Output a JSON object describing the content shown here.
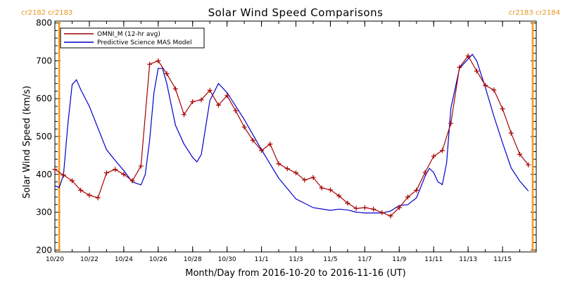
{
  "chart_data": {
    "type": "line",
    "title": "Solar Wind Speed Comparisons",
    "xlabel": "Month/Day from 2016-10-20 to 2016-11-16 (UT)",
    "ylabel": "Solar Wind Speed (km/s)",
    "xlim": [
      "2016-10-20",
      "2016-11-16T23:00"
    ],
    "ylim": [
      195,
      805
    ],
    "y_ticks": [
      200,
      300,
      400,
      500,
      600,
      700,
      800
    ],
    "x_ticks": [
      {
        "date": "2016-10-20",
        "label": "10/20"
      },
      {
        "date": "2016-10-22",
        "label": "10/22"
      },
      {
        "date": "2016-10-24",
        "label": "10/24"
      },
      {
        "date": "2016-10-26",
        "label": "10/26"
      },
      {
        "date": "2016-10-28",
        "label": "10/28"
      },
      {
        "date": "2016-10-30",
        "label": "10/30"
      },
      {
        "date": "2016-11-01",
        "label": "11/1"
      },
      {
        "date": "2016-11-03",
        "label": "11/3"
      },
      {
        "date": "2016-11-05",
        "label": "11/5"
      },
      {
        "date": "2016-11-07",
        "label": "11/7"
      },
      {
        "date": "2016-11-09",
        "label": "11/9"
      },
      {
        "date": "2016-11-11",
        "label": "11/11"
      },
      {
        "date": "2016-11-13",
        "label": "11/13"
      },
      {
        "date": "2016-11-15",
        "label": "11/15"
      }
    ],
    "legend_position": "top-left",
    "carrington_markers": [
      {
        "date": "2016-10-20T06:00",
        "labels": [
          "cr2182",
          "cr2183"
        ],
        "label_side": "left"
      },
      {
        "date": "2016-11-16T18:00",
        "labels": [
          "cr2183",
          "cr2184"
        ],
        "label_side": "right"
      }
    ],
    "marker_color": "#f29a1f",
    "series": [
      {
        "name": "OMNI_M (12-hr avg)",
        "color": "#a50000",
        "marker": "plus",
        "points": [
          [
            "2016-10-20T00:00",
            413
          ],
          [
            "2016-10-20T12:00",
            398
          ],
          [
            "2016-10-21T00:00",
            383
          ],
          [
            "2016-10-21T12:00",
            358
          ],
          [
            "2016-10-22T00:00",
            345
          ],
          [
            "2016-10-22T12:00",
            338
          ],
          [
            "2016-10-23T00:00",
            404
          ],
          [
            "2016-10-23T12:00",
            413
          ],
          [
            "2016-10-24T00:00",
            400
          ],
          [
            "2016-10-24T12:00",
            383
          ],
          [
            "2016-10-25T00:00",
            422
          ],
          [
            "2016-10-25T12:00",
            691
          ],
          [
            "2016-10-26T00:00",
            700
          ],
          [
            "2016-10-26T12:00",
            666
          ],
          [
            "2016-10-27T00:00",
            626
          ],
          [
            "2016-10-27T12:00",
            558
          ],
          [
            "2016-10-28T00:00",
            592
          ],
          [
            "2016-10-28T12:00",
            597
          ],
          [
            "2016-10-29T00:00",
            622
          ],
          [
            "2016-10-29T12:00",
            583
          ],
          [
            "2016-10-30T00:00",
            608
          ],
          [
            "2016-10-30T12:00",
            568
          ],
          [
            "2016-10-31T00:00",
            525
          ],
          [
            "2016-10-31T12:00",
            490
          ],
          [
            "2016-11-01T00:00",
            463
          ],
          [
            "2016-11-01T12:00",
            480
          ],
          [
            "2016-11-02T00:00",
            428
          ],
          [
            "2016-11-02T12:00",
            415
          ],
          [
            "2016-11-03T00:00",
            404
          ],
          [
            "2016-11-03T12:00",
            385
          ],
          [
            "2016-11-04T00:00",
            392
          ],
          [
            "2016-11-04T12:00",
            364
          ],
          [
            "2016-11-05T00:00",
            359
          ],
          [
            "2016-11-05T12:00",
            343
          ],
          [
            "2016-11-06T00:00",
            324
          ],
          [
            "2016-11-06T12:00",
            310
          ],
          [
            "2016-11-07T00:00",
            312
          ],
          [
            "2016-11-07T12:00",
            308
          ],
          [
            "2016-11-08T00:00",
            299
          ],
          [
            "2016-11-08T12:00",
            290
          ],
          [
            "2016-11-09T00:00",
            312
          ],
          [
            "2016-11-09T12:00",
            340
          ],
          [
            "2016-11-10T00:00",
            358
          ],
          [
            "2016-11-10T12:00",
            405
          ],
          [
            "2016-11-11T00:00",
            448
          ],
          [
            "2016-11-11T12:00",
            463
          ],
          [
            "2016-11-12T00:00",
            535
          ],
          [
            "2016-11-12T12:00",
            683
          ],
          [
            "2016-11-13T00:00",
            713
          ],
          [
            "2016-11-13T12:00",
            673
          ],
          [
            "2016-11-14T00:00",
            635
          ],
          [
            "2016-11-14T12:00",
            623
          ],
          [
            "2016-11-15T00:00",
            573
          ],
          [
            "2016-11-15T12:00",
            509
          ],
          [
            "2016-11-16T00:00",
            453
          ],
          [
            "2016-11-16T12:00",
            425
          ]
        ]
      },
      {
        "name": "Predictive Science MAS Model",
        "color": "#0000c8",
        "marker": "none",
        "points": [
          [
            "2016-10-20T00:00",
            370
          ],
          [
            "2016-10-20T06:00",
            365
          ],
          [
            "2016-10-20T12:00",
            398
          ],
          [
            "2016-10-20T18:00",
            530
          ],
          [
            "2016-10-21T00:00",
            637
          ],
          [
            "2016-10-21T06:00",
            650
          ],
          [
            "2016-10-21T12:00",
            624
          ],
          [
            "2016-10-22T00:00",
            580
          ],
          [
            "2016-10-23T00:00",
            465
          ],
          [
            "2016-10-23T12:00",
            437
          ],
          [
            "2016-10-24T00:00",
            410
          ],
          [
            "2016-10-24T12:00",
            380
          ],
          [
            "2016-10-25T00:00",
            372
          ],
          [
            "2016-10-25T06:00",
            400
          ],
          [
            "2016-10-25T12:00",
            490
          ],
          [
            "2016-10-25T18:00",
            615
          ],
          [
            "2016-10-26T00:00",
            680
          ],
          [
            "2016-10-26T06:00",
            680
          ],
          [
            "2016-10-26T12:00",
            640
          ],
          [
            "2016-10-27T00:00",
            530
          ],
          [
            "2016-10-27T12:00",
            480
          ],
          [
            "2016-10-28T00:00",
            445
          ],
          [
            "2016-10-28T06:00",
            433
          ],
          [
            "2016-10-28T12:00",
            452
          ],
          [
            "2016-10-29T00:00",
            595
          ],
          [
            "2016-10-29T12:00",
            640
          ],
          [
            "2016-10-30T00:00",
            616
          ],
          [
            "2016-10-31T00:00",
            545
          ],
          [
            "2016-11-01T00:00",
            465
          ],
          [
            "2016-11-02T00:00",
            390
          ],
          [
            "2016-11-03T00:00",
            335
          ],
          [
            "2016-11-04T00:00",
            312
          ],
          [
            "2016-11-05T00:00",
            305
          ],
          [
            "2016-11-05T12:00",
            308
          ],
          [
            "2016-11-06T00:00",
            306
          ],
          [
            "2016-11-06T12:00",
            300
          ],
          [
            "2016-11-07T00:00",
            298
          ],
          [
            "2016-11-08T00:00",
            298
          ],
          [
            "2016-11-08T12:00",
            303
          ],
          [
            "2016-11-09T00:00",
            318
          ],
          [
            "2016-11-09T12:00",
            320
          ],
          [
            "2016-11-10T00:00",
            338
          ],
          [
            "2016-11-10T12:00",
            395
          ],
          [
            "2016-11-10T18:00",
            416
          ],
          [
            "2016-11-11T00:00",
            405
          ],
          [
            "2016-11-11T06:00",
            380
          ],
          [
            "2016-11-11T12:00",
            373
          ],
          [
            "2016-11-11T18:00",
            430
          ],
          [
            "2016-11-12T00:00",
            575
          ],
          [
            "2016-11-12T12:00",
            680
          ],
          [
            "2016-11-13T00:00",
            705
          ],
          [
            "2016-11-13T06:00",
            717
          ],
          [
            "2016-11-13T12:00",
            700
          ],
          [
            "2016-11-14T00:00",
            630
          ],
          [
            "2016-11-14T12:00",
            553
          ],
          [
            "2016-11-15T00:00",
            483
          ],
          [
            "2016-11-15T12:00",
            417
          ],
          [
            "2016-11-16T00:00",
            382
          ],
          [
            "2016-11-16T12:00",
            356
          ]
        ]
      }
    ]
  }
}
